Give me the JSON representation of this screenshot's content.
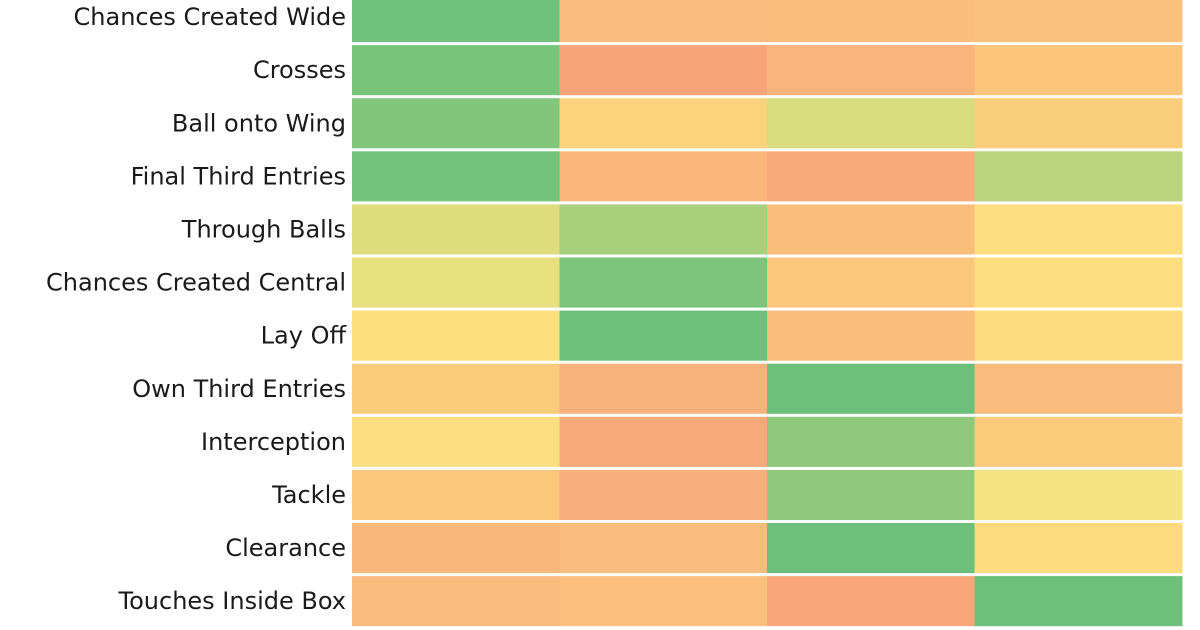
{
  "chart_data": {
    "type": "heatmap",
    "title": "",
    "xlabel": "",
    "ylabel": "",
    "rows": [
      "Chances Created Wide",
      "Crosses",
      "Ball onto Wing",
      "Final Third Entries",
      "Through Balls",
      "Chances Created Central",
      "Lay Off",
      "Own Third Entries",
      "Interception",
      "Tackle",
      "Clearance",
      "Touches Inside Box"
    ],
    "columns": [
      "",
      "",
      "",
      ""
    ],
    "color_scale": {
      "low": "#f8a07a",
      "mid": "#fde57e",
      "high": "#63be7b"
    },
    "values": [
      [
        0.96,
        0.2,
        0.22,
        0.24
      ],
      [
        0.93,
        0.03,
        0.14,
        0.27
      ],
      [
        0.9,
        0.36,
        0.62,
        0.33
      ],
      [
        0.94,
        0.16,
        0.07,
        0.72
      ],
      [
        0.6,
        0.78,
        0.22,
        0.45
      ],
      [
        0.57,
        0.92,
        0.28,
        0.45
      ],
      [
        0.46,
        0.97,
        0.22,
        0.43
      ],
      [
        0.31,
        0.13,
        0.97,
        0.2
      ],
      [
        0.45,
        0.06,
        0.86,
        0.31
      ],
      [
        0.28,
        0.1,
        0.86,
        0.53
      ],
      [
        0.18,
        0.2,
        0.97,
        0.42
      ],
      [
        0.2,
        0.23,
        0.05,
        0.97
      ]
    ]
  }
}
